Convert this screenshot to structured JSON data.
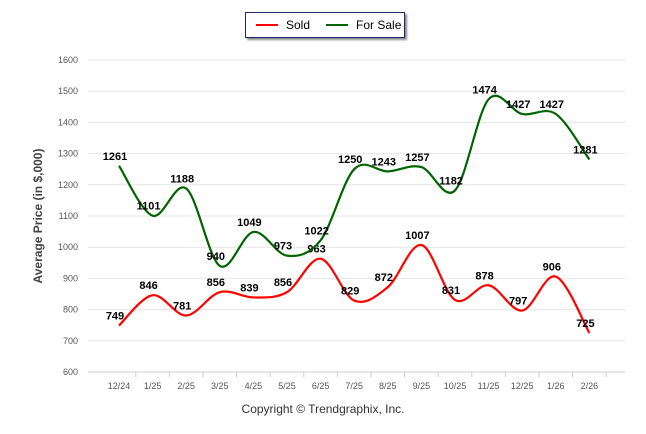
{
  "chart_data": {
    "type": "line",
    "title": "",
    "xlabel": "",
    "ylabel": "Average Price (in $,000)",
    "ylim": [
      600,
      1600
    ],
    "yticks": [
      600,
      700,
      800,
      900,
      1000,
      1100,
      1200,
      1300,
      1400,
      1500,
      1600
    ],
    "categories": [
      "12/24",
      "1/25",
      "2/25",
      "3/25",
      "4/25",
      "5/25",
      "6/25",
      "7/25",
      "8/25",
      "9/25",
      "10/25",
      "11/25",
      "12/25",
      "1/26",
      "2/26"
    ],
    "series": [
      {
        "name": "Sold",
        "color": "#ff0000",
        "values": [
          749,
          846,
          781,
          856,
          839,
          856,
          963,
          829,
          872,
          1007,
          831,
          878,
          797,
          906,
          725
        ]
      },
      {
        "name": "For Sale",
        "color": "#006400",
        "values": [
          1261,
          1101,
          1188,
          940,
          1049,
          973,
          1022,
          1250,
          1243,
          1257,
          1182,
          1474,
          1427,
          1427,
          1281
        ]
      }
    ],
    "grid": true,
    "legend_position": "top-center"
  },
  "legend": {
    "sold": "Sold",
    "for_sale": "For Sale"
  },
  "footer": "Copyright © Trendgraphix, Inc."
}
